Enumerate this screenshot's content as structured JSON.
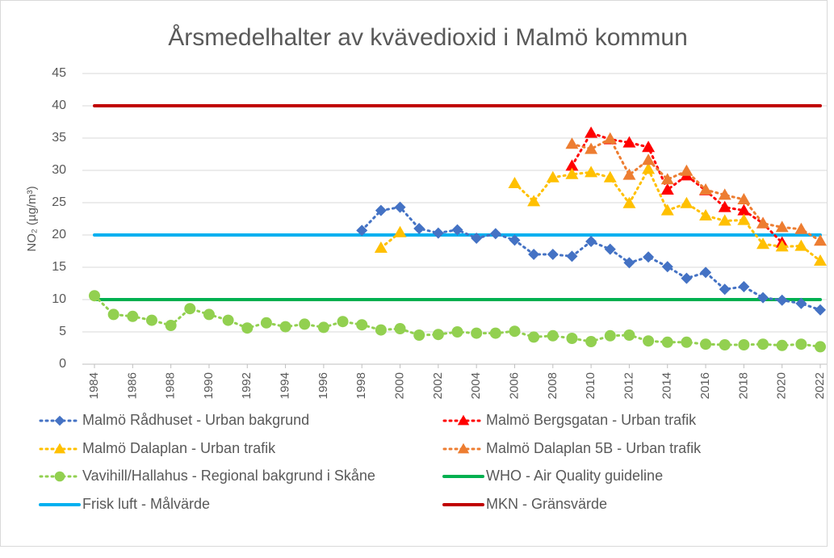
{
  "chart_data": {
    "type": "line",
    "title": "Årsmedelhalter av kvävedioxid i Malmö kommun",
    "y_label": "NO₂ (µg/m³)",
    "x": [
      1984,
      1985,
      1986,
      1987,
      1988,
      1989,
      1990,
      1991,
      1992,
      1993,
      1994,
      1995,
      1996,
      1997,
      1998,
      1999,
      2000,
      2001,
      2002,
      2003,
      2004,
      2005,
      2006,
      2007,
      2008,
      2009,
      2010,
      2011,
      2012,
      2013,
      2014,
      2015,
      2016,
      2017,
      2018,
      2019,
      2020,
      2021,
      2022
    ],
    "xlim": [
      1984,
      2022
    ],
    "xticks": [
      1984,
      1986,
      1988,
      1990,
      1992,
      1994,
      1996,
      1998,
      2000,
      2002,
      2004,
      2006,
      2008,
      2010,
      2012,
      2014,
      2016,
      2018,
      2020,
      2022
    ],
    "ylim": [
      0,
      45
    ],
    "yticks": [
      0,
      5,
      10,
      15,
      20,
      25,
      30,
      35,
      40,
      45
    ],
    "grid": true,
    "legend": "bottom",
    "series": [
      {
        "name": "Malmö Rådhuset - Urban bakgrund",
        "color": "#4472c4",
        "marker": "diamond",
        "line_style": "dotted",
        "values": [
          null,
          null,
          null,
          null,
          null,
          null,
          null,
          null,
          null,
          null,
          null,
          null,
          null,
          null,
          20.7,
          23.8,
          24.3,
          21.0,
          20.3,
          20.8,
          19.5,
          20.2,
          19.2,
          17.0,
          17.0,
          16.7,
          19.0,
          17.8,
          15.7,
          16.6,
          15.1,
          13.3,
          14.2,
          11.6,
          12.0,
          10.3,
          9.9,
          9.4,
          8.4
        ]
      },
      {
        "name": "Malmö Bergsgatan - Urban trafik",
        "color": "#ff0000",
        "marker": "triangle",
        "line_style": "dotted",
        "values": [
          null,
          null,
          null,
          null,
          null,
          null,
          null,
          null,
          null,
          null,
          null,
          null,
          null,
          null,
          null,
          null,
          null,
          null,
          null,
          null,
          null,
          null,
          null,
          null,
          null,
          30.7,
          35.8,
          34.8,
          34.3,
          33.6,
          27.0,
          29.2,
          26.9,
          24.3,
          23.8,
          21.8,
          18.8,
          null,
          null
        ]
      },
      {
        "name": "Malmö Dalaplan - Urban trafik",
        "color": "#ffc000",
        "marker": "triangle",
        "line_style": "dotted",
        "values": [
          null,
          null,
          null,
          null,
          null,
          null,
          null,
          null,
          null,
          null,
          null,
          null,
          null,
          null,
          null,
          18.0,
          20.4,
          null,
          null,
          null,
          null,
          null,
          28.0,
          25.2,
          28.9,
          29.4,
          29.7,
          28.9,
          24.9,
          30.2,
          23.8,
          24.9,
          23.0,
          22.2,
          22.3,
          18.6,
          18.2,
          18.3,
          16.0
        ]
      },
      {
        "name": "Malmö Dalaplan 5B - Urban trafik",
        "color": "#ed7d31",
        "marker": "triangle",
        "line_style": "dotted",
        "values": [
          null,
          null,
          null,
          null,
          null,
          null,
          null,
          null,
          null,
          null,
          null,
          null,
          null,
          null,
          null,
          null,
          null,
          null,
          null,
          null,
          null,
          null,
          null,
          null,
          null,
          34.1,
          33.3,
          34.9,
          29.3,
          31.6,
          28.6,
          29.9,
          27.0,
          26.2,
          25.5,
          21.8,
          21.2,
          20.9,
          19.1
        ]
      },
      {
        "name": "Vavihill/Hallahus - Regional bakgrund i Skåne",
        "color": "#92d050",
        "marker": "circle",
        "line_style": "dotted",
        "values": [
          10.6,
          7.7,
          7.4,
          6.8,
          6.0,
          8.6,
          7.7,
          6.8,
          5.6,
          6.4,
          5.8,
          6.2,
          5.7,
          6.6,
          6.1,
          5.3,
          5.5,
          4.5,
          4.6,
          5.0,
          4.8,
          4.8,
          5.1,
          4.2,
          4.4,
          4.0,
          3.5,
          4.4,
          4.5,
          3.6,
          3.4,
          3.4,
          3.1,
          3.0,
          3.0,
          3.1,
          2.9,
          3.1,
          2.7
        ]
      },
      {
        "name": "WHO - Air Quality guideline",
        "color": "#00b050",
        "marker": "none",
        "line_style": "solid",
        "values": [
          10,
          10,
          10,
          10,
          10,
          10,
          10,
          10,
          10,
          10,
          10,
          10,
          10,
          10,
          10,
          10,
          10,
          10,
          10,
          10,
          10,
          10,
          10,
          10,
          10,
          10,
          10,
          10,
          10,
          10,
          10,
          10,
          10,
          10,
          10,
          10,
          10,
          10,
          10
        ]
      },
      {
        "name": "Frisk luft - Målvärde",
        "color": "#00b0f0",
        "marker": "none",
        "line_style": "solid",
        "values": [
          20,
          20,
          20,
          20,
          20,
          20,
          20,
          20,
          20,
          20,
          20,
          20,
          20,
          20,
          20,
          20,
          20,
          20,
          20,
          20,
          20,
          20,
          20,
          20,
          20,
          20,
          20,
          20,
          20,
          20,
          20,
          20,
          20,
          20,
          20,
          20,
          20,
          20,
          20
        ]
      },
      {
        "name": "MKN - Gränsvärde",
        "color": "#c00000",
        "marker": "none",
        "line_style": "solid",
        "values": [
          40,
          40,
          40,
          40,
          40,
          40,
          40,
          40,
          40,
          40,
          40,
          40,
          40,
          40,
          40,
          40,
          40,
          40,
          40,
          40,
          40,
          40,
          40,
          40,
          40,
          40,
          40,
          40,
          40,
          40,
          40,
          40,
          40,
          40,
          40,
          40,
          40,
          40,
          40
        ]
      }
    ]
  }
}
